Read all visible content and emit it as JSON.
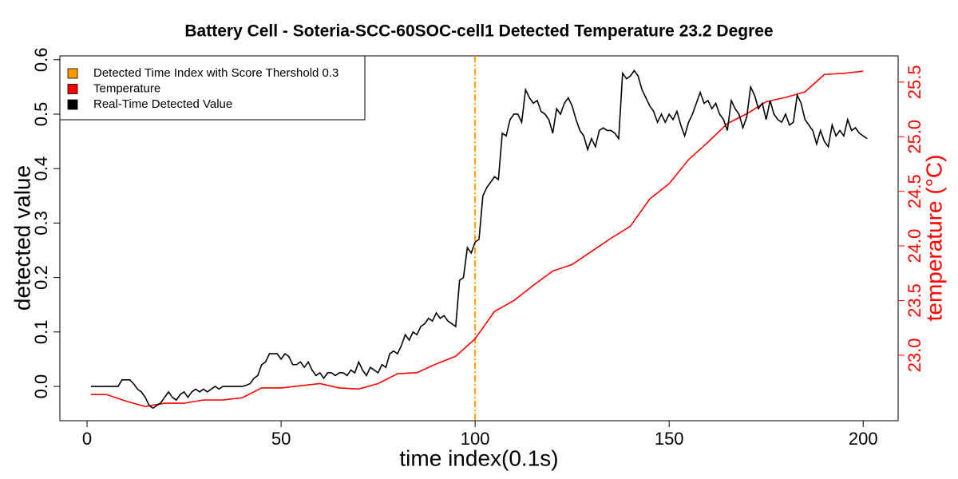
{
  "chart_data": {
    "type": "line",
    "title": "Battery Cell - Soteria-SCC-60SOC-cell1 Detected Temperature 23.2 Degree",
    "xlabel": "time index(0.1s)",
    "ylabel": "detected value",
    "y2label": "temperature (°C)",
    "xlim": [
      -7,
      209
    ],
    "xticks": [
      0,
      50,
      100,
      150,
      200
    ],
    "ylim": [
      -0.063,
      0.607
    ],
    "yticks": [
      {
        "value": 0,
        "label": "0.0"
      },
      0.1,
      0.2,
      0.3,
      0.4,
      0.5,
      0.6
    ],
    "y2lim": [
      22.4,
      25.74
    ],
    "y2ticks": [
      {
        "value": 23,
        "label": "23.0"
      },
      23.5,
      {
        "value": 24,
        "label": "24.0"
      },
      24.5,
      {
        "value": 25,
        "label": "25.0"
      },
      25.5
    ],
    "y2color": "#ff0000",
    "legend": "top-left",
    "vline": {
      "name": "Detected Time Index with Score Thershold 0.3",
      "x": 100,
      "color": "#ff9900"
    },
    "series": [
      {
        "name": "Temperature",
        "color": "#ff0000",
        "axis": "y2",
        "x": [
          1,
          5,
          10,
          15,
          20,
          25,
          30,
          35,
          40,
          45,
          50,
          55,
          60,
          65,
          70,
          75,
          80,
          85,
          90,
          95,
          100,
          105,
          110,
          115,
          120,
          125,
          130,
          135,
          140,
          145,
          150,
          155,
          160,
          165,
          170,
          175,
          180,
          185,
          190,
          195,
          200
        ],
        "values": [
          22.64,
          22.64,
          22.58,
          22.53,
          22.56,
          22.56,
          22.59,
          22.59,
          22.61,
          22.7,
          22.7,
          22.72,
          22.74,
          22.7,
          22.69,
          22.74,
          22.83,
          22.84,
          22.92,
          22.99,
          23.15,
          23.4,
          23.5,
          23.64,
          23.77,
          23.83,
          23.95,
          24.07,
          24.18,
          24.43,
          24.57,
          24.79,
          24.95,
          25.12,
          25.21,
          25.32,
          25.36,
          25.41,
          25.57,
          25.58,
          25.6
        ]
      },
      {
        "name": "Real-Time Detected Value",
        "color": "#000000",
        "x": [
          1,
          2,
          3,
          4,
          5,
          6,
          7,
          8,
          9,
          10,
          11,
          12,
          13,
          14,
          15,
          16,
          17,
          18,
          19,
          20,
          21,
          22,
          23,
          24,
          25,
          26,
          27,
          28,
          29,
          30,
          31,
          32,
          33,
          34,
          35,
          36,
          37,
          38,
          39,
          40,
          41,
          42,
          43,
          44,
          45,
          46,
          47,
          48,
          49,
          50,
          51,
          52,
          53,
          54,
          55,
          56,
          57,
          58,
          59,
          60,
          61,
          62,
          63,
          64,
          65,
          66,
          67,
          68,
          69,
          70,
          71,
          72,
          73,
          74,
          75,
          76,
          77,
          78,
          79,
          80,
          81,
          82,
          83,
          84,
          85,
          86,
          87,
          88,
          89,
          90,
          91,
          92,
          93,
          94,
          95,
          96,
          97,
          98,
          99,
          100,
          101,
          102,
          103,
          104,
          105,
          106,
          107,
          108,
          109,
          110,
          111,
          112,
          113,
          114,
          115,
          116,
          117,
          118,
          119,
          120,
          121,
          122,
          123,
          124,
          125,
          126,
          127,
          128,
          129,
          130,
          131,
          132,
          133,
          134,
          135,
          136,
          137,
          138,
          139,
          140,
          141,
          142,
          143,
          144,
          145,
          146,
          147,
          148,
          149,
          150,
          151,
          152,
          153,
          154,
          155,
          156,
          157,
          158,
          159,
          160,
          161,
          162,
          163,
          164,
          165,
          166,
          167,
          168,
          169,
          170,
          171,
          172,
          173,
          174,
          175,
          176,
          177,
          178,
          179,
          180,
          181,
          182,
          183,
          184,
          185,
          186,
          187,
          188,
          189,
          190,
          191,
          192,
          193,
          194,
          195,
          196,
          197,
          198,
          199,
          200,
          201
        ],
        "values": [
          0,
          0,
          0,
          0,
          0,
          0,
          0,
          0,
          0.012,
          0.012,
          0.012,
          0.005,
          -0.005,
          -0.01,
          -0.02,
          -0.035,
          -0.04,
          -0.035,
          -0.03,
          -0.02,
          -0.01,
          -0.02,
          -0.025,
          -0.015,
          -0.01,
          -0.02,
          -0.01,
          -0.005,
          -0.01,
          -0.005,
          -0.01,
          -0.005,
          0,
          -0.005,
          0,
          0,
          0,
          0,
          0,
          0,
          0.002,
          0.005,
          0.015,
          0.02,
          0.04,
          0.045,
          0.06,
          0.06,
          0.06,
          0.05,
          0.06,
          0.055,
          0.04,
          0.04,
          0.045,
          0.035,
          0.045,
          0.03,
          0.02,
          0.025,
          0.015,
          0.025,
          0.025,
          0.02,
          0.025,
          0.025,
          0.02,
          0.03,
          0.025,
          0.045,
          0.03,
          0.02,
          0.035,
          0.03,
          0.025,
          0.04,
          0.035,
          0.06,
          0.065,
          0.06,
          0.075,
          0.095,
          0.085,
          0.1,
          0.095,
          0.11,
          0.115,
          0.125,
          0.12,
          0.135,
          0.125,
          0.13,
          0.12,
          0.115,
          0.11,
          0.195,
          0.2,
          0.255,
          0.245,
          0.265,
          0.27,
          0.35,
          0.365,
          0.375,
          0.385,
          0.38,
          0.465,
          0.46,
          0.49,
          0.5,
          0.5,
          0.485,
          0.545,
          0.53,
          0.52,
          0.525,
          0.505,
          0.5,
          0.49,
          0.465,
          0.51,
          0.5,
          0.52,
          0.53,
          0.515,
          0.49,
          0.47,
          0.46,
          0.435,
          0.455,
          0.44,
          0.47,
          0.475,
          0.47,
          0.47,
          0.465,
          0.455,
          0.575,
          0.565,
          0.57,
          0.58,
          0.57,
          0.545,
          0.53,
          0.515,
          0.505,
          0.485,
          0.5,
          0.485,
          0.5,
          0.49,
          0.505,
          0.48,
          0.46,
          0.485,
          0.5,
          0.52,
          0.54,
          0.52,
          0.525,
          0.51,
          0.52,
          0.5,
          0.49,
          0.47,
          0.525,
          0.51,
          0.5,
          0.475,
          0.495,
          0.55,
          0.535,
          0.51,
          0.52,
          0.49,
          0.525,
          0.5,
          0.49,
          0.485,
          0.5,
          0.48,
          0.485,
          0.535,
          0.52,
          0.49,
          0.48,
          0.47,
          0.445,
          0.47,
          0.45,
          0.44,
          0.48,
          0.46,
          0.47,
          0.46,
          0.49,
          0.47,
          0.475,
          0.465,
          0.46,
          0.455
        ]
      }
    ]
  }
}
